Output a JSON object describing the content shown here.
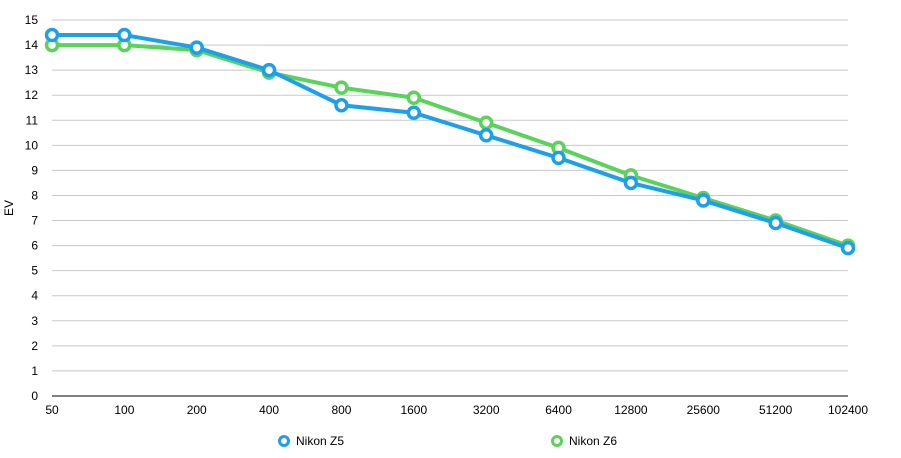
{
  "chart_data": {
    "type": "line",
    "title": "",
    "xlabel": "",
    "ylabel": "EV",
    "x_scale": "log2-categorical",
    "categories": [
      "50",
      "100",
      "200",
      "400",
      "800",
      "1600",
      "3200",
      "6400",
      "12800",
      "25600",
      "51200",
      "102400"
    ],
    "ylim": [
      0,
      15
    ],
    "y_ticks": [
      0,
      1,
      2,
      3,
      4,
      5,
      6,
      7,
      8,
      9,
      10,
      11,
      12,
      13,
      14,
      15
    ],
    "grid": "horizontal",
    "legend_position": "bottom",
    "series": [
      {
        "name": "Nikon Z5",
        "color": "#1E9FEA",
        "values": [
          14.4,
          14.4,
          13.9,
          13.0,
          11.6,
          11.3,
          10.4,
          9.5,
          8.5,
          7.8,
          6.9,
          5.9
        ]
      },
      {
        "name": "Nikon Z6",
        "color": "#5AD35A",
        "values": [
          14.0,
          14.0,
          13.8,
          12.9,
          12.3,
          11.9,
          10.9,
          9.9,
          8.8,
          7.9,
          7.0,
          6.0
        ]
      }
    ]
  }
}
